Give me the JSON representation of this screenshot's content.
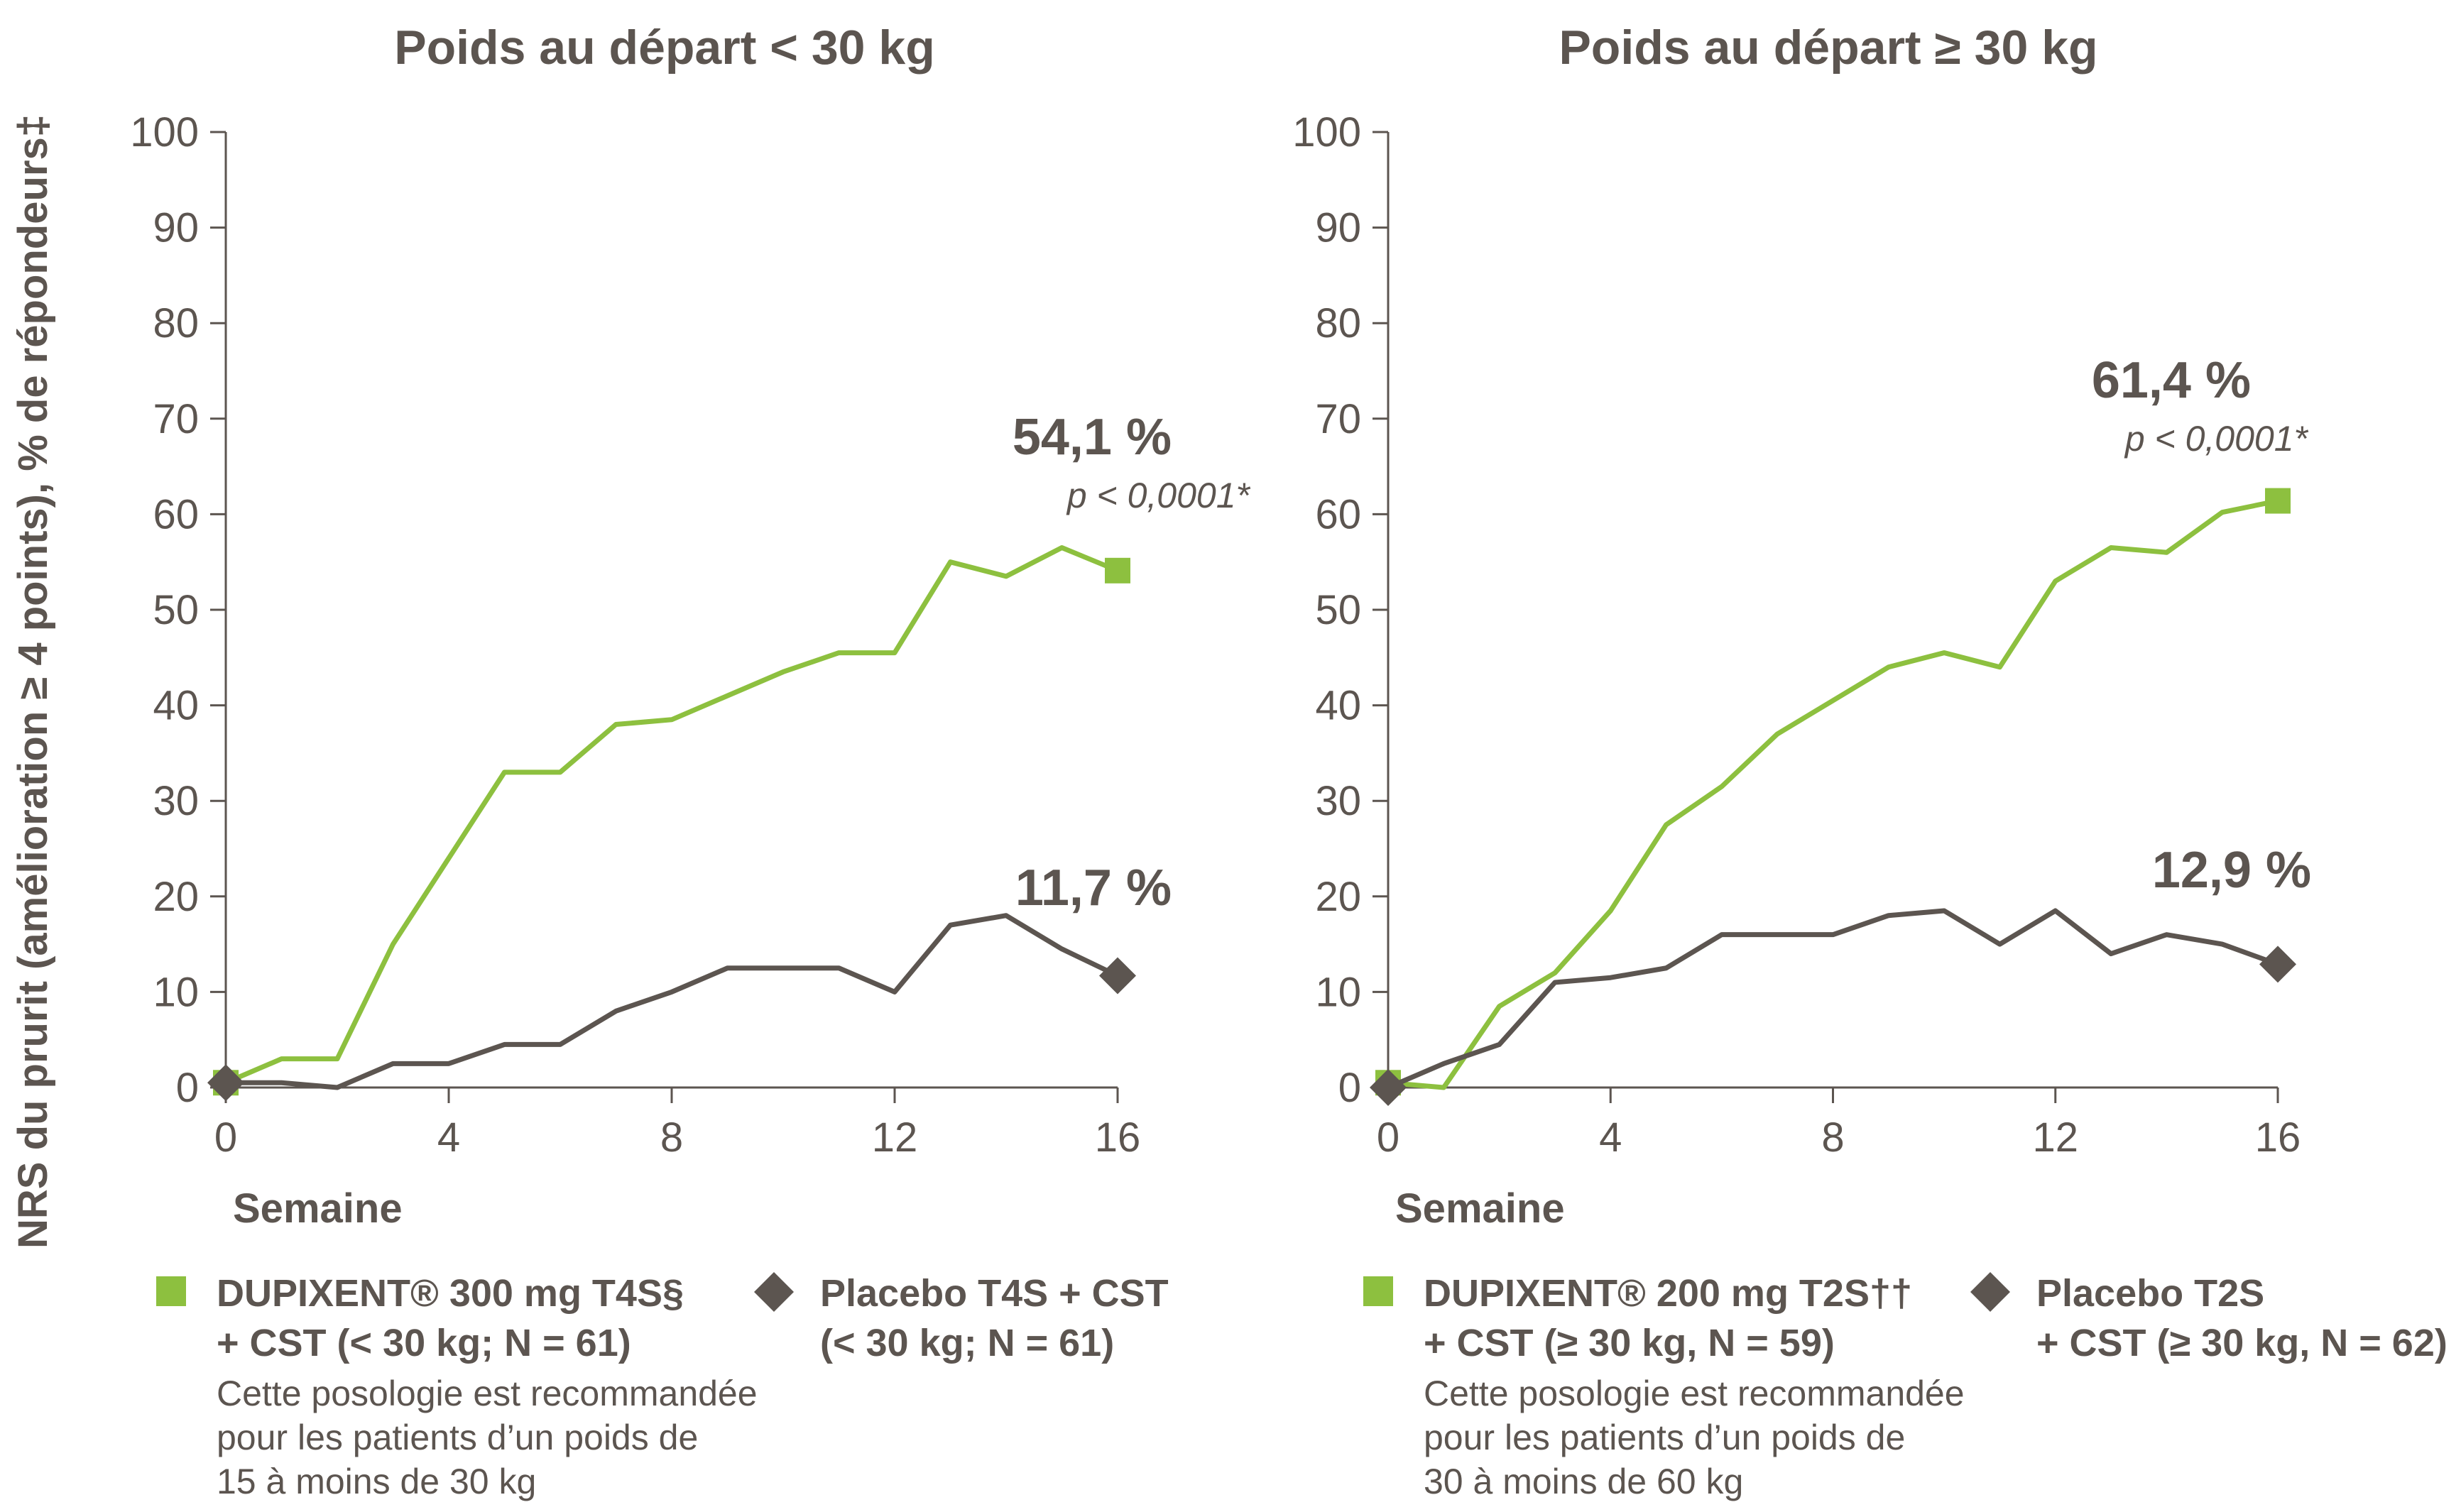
{
  "ylabel": "NRS du prurit (amélioration ≥ 4 points), % de répondeurs‡",
  "colors": {
    "green": "#8dc03f",
    "grey": "#5c5550"
  },
  "chart_data": [
    {
      "type": "line",
      "title": "Poids au départ < 30 kg",
      "xlabel": "Semaine",
      "xlim": [
        0,
        16
      ],
      "ylim": [
        0,
        100
      ],
      "xticks": [
        "0",
        "4",
        "8",
        "12",
        "16"
      ],
      "yticks": [
        "0",
        "10",
        "20",
        "30",
        "40",
        "50",
        "60",
        "70",
        "80",
        "90",
        "100"
      ],
      "series": [
        {
          "name": "DUPIXENT® 300 mg T4S§ + CST (< 30 kg; N = 61)",
          "color": "#8dc03f",
          "marker": "square",
          "x": [
            0,
            1,
            2,
            3,
            4,
            5,
            6,
            7,
            8,
            9,
            10,
            11,
            12,
            13,
            14,
            15,
            16
          ],
          "y": [
            0.5,
            3,
            3,
            15,
            24,
            33,
            33,
            38,
            38.5,
            41,
            43.5,
            45.5,
            45.5,
            55,
            53.5,
            56.5,
            54.1
          ]
        },
        {
          "name": "Placebo T4S + CST (< 30 kg; N = 61)",
          "color": "#5c5550",
          "marker": "diamond",
          "x": [
            0,
            1,
            2,
            3,
            4,
            5,
            6,
            7,
            8,
            9,
            10,
            11,
            12,
            13,
            14,
            15,
            16
          ],
          "y": [
            0.5,
            0.5,
            0,
            2.5,
            2.5,
            4.5,
            4.5,
            8,
            10,
            12.5,
            12.5,
            12.5,
            10,
            17,
            18,
            14.5,
            11.7
          ]
        }
      ],
      "annotations": [
        {
          "text": "54,1 %",
          "sub": "p < 0,0001*"
        },
        {
          "text": "11,7 %"
        }
      ],
      "legend": [
        {
          "bold_lines": [
            "DUPIXENT® 300 mg T4S§",
            "+ CST (< 30 kg; N = 61)"
          ],
          "note_lines": [
            "Cette posologie est recommandée",
            "pour les patients d’un poids de",
            "15 à moins de 30 kg"
          ]
        },
        {
          "bold_lines": [
            "Placebo T4S + CST",
            "(< 30 kg; N = 61)"
          ],
          "note_lines": []
        }
      ]
    },
    {
      "type": "line",
      "title": "Poids au départ ≥ 30 kg",
      "xlabel": "Semaine",
      "xlim": [
        0,
        16
      ],
      "ylim": [
        0,
        100
      ],
      "xticks": [
        "0",
        "4",
        "8",
        "12",
        "16"
      ],
      "yticks": [
        "0",
        "10",
        "20",
        "30",
        "40",
        "50",
        "60",
        "70",
        "80",
        "90",
        "100"
      ],
      "series": [
        {
          "name": "DUPIXENT® 200 mg T2S†† + CST (≥ 30 kg, N = 59)",
          "color": "#8dc03f",
          "marker": "square",
          "x": [
            0,
            1,
            2,
            3,
            4,
            5,
            6,
            7,
            8,
            9,
            10,
            11,
            12,
            13,
            14,
            15,
            16
          ],
          "y": [
            0.5,
            0,
            8.5,
            12,
            18.5,
            27.5,
            31.5,
            37,
            40.5,
            44,
            45.5,
            44,
            53,
            56.5,
            56,
            60.2,
            61.4
          ]
        },
        {
          "name": "Placebo T2S + CST (≥ 30 kg, N = 62)",
          "color": "#5c5550",
          "marker": "diamond",
          "x": [
            0,
            1,
            2,
            3,
            4,
            5,
            6,
            7,
            8,
            9,
            10,
            11,
            12,
            13,
            14,
            15,
            16
          ],
          "y": [
            0,
            2.5,
            4.5,
            11,
            11.5,
            12.5,
            16,
            16,
            16,
            18,
            18.5,
            15,
            18.5,
            14,
            16,
            15,
            12.9
          ]
        }
      ],
      "annotations": [
        {
          "text": "61,4 %",
          "sub": "p < 0,0001*"
        },
        {
          "text": "12,9 %"
        }
      ],
      "legend": [
        {
          "bold_lines": [
            "DUPIXENT® 200 mg T2S††",
            "+ CST (≥ 30 kg, N = 59)"
          ],
          "note_lines": [
            "Cette posologie est recommandée",
            "pour les patients d’un poids de",
            "30 à moins de 60 kg"
          ]
        },
        {
          "bold_lines": [
            "Placebo T2S",
            "+ CST (≥ 30 kg, N = 62)"
          ],
          "note_lines": []
        }
      ]
    }
  ]
}
